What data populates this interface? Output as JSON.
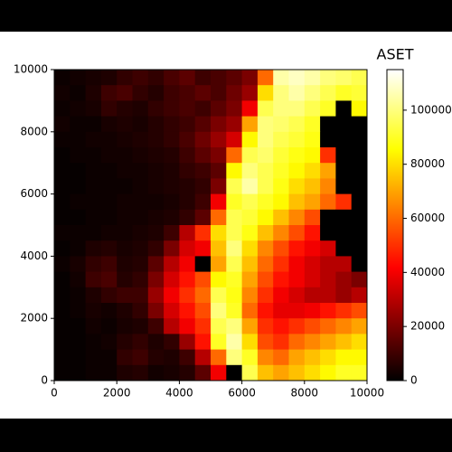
{
  "chart_data": {
    "type": "heatmap",
    "title": "ASET",
    "colormap": "hot",
    "xlim": [
      0,
      10000
    ],
    "ylim": [
      0,
      10000
    ],
    "xticks": [
      0,
      2000,
      4000,
      6000,
      8000,
      10000
    ],
    "yticks": [
      0,
      2000,
      4000,
      6000,
      8000,
      10000
    ],
    "clim": [
      0,
      115000
    ],
    "cticks": [
      0,
      20000,
      40000,
      60000,
      80000,
      100000
    ],
    "x": [
      250,
      750,
      1250,
      1750,
      2250,
      2750,
      3250,
      3750,
      4250,
      4750,
      5250,
      5750,
      6250,
      6750,
      7250,
      7750,
      8250,
      8750,
      9250,
      9750
    ],
    "y": [
      9750,
      9250,
      8750,
      8250,
      7750,
      7250,
      6750,
      6250,
      5750,
      5250,
      4750,
      4250,
      3750,
      3250,
      2750,
      2250,
      1750,
      1250,
      750,
      250
    ],
    "z": [
      [
        2000,
        3000,
        4000,
        5000,
        8000,
        10000,
        8000,
        12000,
        15000,
        10000,
        12000,
        15000,
        20000,
        60000,
        105000,
        108000,
        105000,
        100000,
        98000,
        95000
      ],
      [
        3000,
        2000,
        5000,
        10000,
        12000,
        8000,
        6000,
        10000,
        12000,
        15000,
        12000,
        18000,
        25000,
        80000,
        100000,
        105000,
        100000,
        95000,
        90000,
        92000
      ],
      [
        2000,
        3000,
        4000,
        8000,
        6000,
        5000,
        8000,
        10000,
        12000,
        10000,
        15000,
        20000,
        40000,
        95000,
        100000,
        100000,
        95000,
        90000,
        0,
        85000
      ],
      [
        3000,
        2000,
        2000,
        4000,
        5000,
        4000,
        6000,
        8000,
        10000,
        14000,
        20000,
        25000,
        70000,
        100000,
        98000,
        95000,
        90000,
        0,
        0,
        0
      ],
      [
        2000,
        2000,
        3000,
        3000,
        4000,
        5000,
        6000,
        8000,
        12000,
        18000,
        25000,
        35000,
        85000,
        100000,
        95000,
        92000,
        88000,
        0,
        0,
        0
      ],
      [
        1000,
        2000,
        2000,
        3000,
        3000,
        4000,
        5000,
        6000,
        10000,
        15000,
        20000,
        60000,
        95000,
        98000,
        92000,
        88000,
        85000,
        50000,
        0,
        0
      ],
      [
        1000,
        1000,
        2000,
        2000,
        3000,
        3000,
        4000,
        5000,
        8000,
        10000,
        15000,
        85000,
        100000,
        95000,
        90000,
        85000,
        80000,
        70000,
        0,
        0
      ],
      [
        1000,
        1000,
        2000,
        2000,
        2000,
        3000,
        4000,
        5000,
        6000,
        8000,
        20000,
        95000,
        105000,
        95000,
        88000,
        80000,
        75000,
        65000,
        0,
        0
      ],
      [
        1000,
        2000,
        2000,
        2000,
        3000,
        3000,
        3000,
        4000,
        6000,
        10000,
        40000,
        90000,
        95000,
        90000,
        85000,
        75000,
        70000,
        60000,
        50000,
        0
      ],
      [
        1000,
        1000,
        2000,
        2000,
        3000,
        3000,
        4000,
        5000,
        8000,
        15000,
        60000,
        95000,
        92000,
        85000,
        75000,
        65000,
        55000,
        0,
        0,
        0
      ],
      [
        2000,
        2000,
        2000,
        3000,
        3000,
        4000,
        5000,
        10000,
        30000,
        50000,
        80000,
        95000,
        88000,
        75000,
        65000,
        55000,
        45000,
        0,
        0,
        0
      ],
      [
        1000,
        2000,
        5000,
        6000,
        4000,
        5000,
        8000,
        20000,
        35000,
        40000,
        75000,
        100000,
        80000,
        65000,
        55000,
        45000,
        40000,
        35000,
        0,
        0
      ],
      [
        2000,
        4000,
        8000,
        10000,
        5000,
        6000,
        15000,
        30000,
        40000,
        0,
        70000,
        95000,
        75000,
        60000,
        50000,
        40000,
        35000,
        30000,
        30000,
        0
      ],
      [
        1000,
        3000,
        10000,
        12000,
        6000,
        8000,
        20000,
        35000,
        45000,
        55000,
        85000,
        90000,
        70000,
        55000,
        45000,
        40000,
        35000,
        30000,
        25000,
        20000
      ],
      [
        1000,
        2000,
        5000,
        8000,
        10000,
        10000,
        25000,
        40000,
        50000,
        60000,
        95000,
        88000,
        65000,
        50000,
        40000,
        35000,
        30000,
        30000,
        25000,
        30000
      ],
      [
        1000,
        2000,
        4000,
        3000,
        5000,
        8000,
        20000,
        35000,
        45000,
        55000,
        100000,
        90000,
        60000,
        45000,
        38000,
        38000,
        40000,
        45000,
        50000,
        55000
      ],
      [
        1000,
        1000,
        3000,
        2000,
        4000,
        5000,
        10000,
        30000,
        40000,
        50000,
        95000,
        100000,
        70000,
        50000,
        45000,
        50000,
        55000,
        60000,
        65000,
        70000
      ],
      [
        1000,
        1000,
        2000,
        3000,
        6000,
        8000,
        5000,
        8000,
        25000,
        45000,
        90000,
        105000,
        80000,
        55000,
        50000,
        60000,
        65000,
        70000,
        75000,
        80000
      ],
      [
        1000,
        1000,
        2000,
        2000,
        8000,
        10000,
        6000,
        5000,
        10000,
        30000,
        60000,
        100000,
        90000,
        65000,
        60000,
        70000,
        75000,
        80000,
        85000,
        85000
      ],
      [
        1000,
        1000,
        2000,
        2000,
        5000,
        6000,
        3000,
        4000,
        6000,
        15000,
        40000,
        0,
        95000,
        75000,
        70000,
        75000,
        80000,
        85000,
        90000,
        90000
      ]
    ]
  }
}
